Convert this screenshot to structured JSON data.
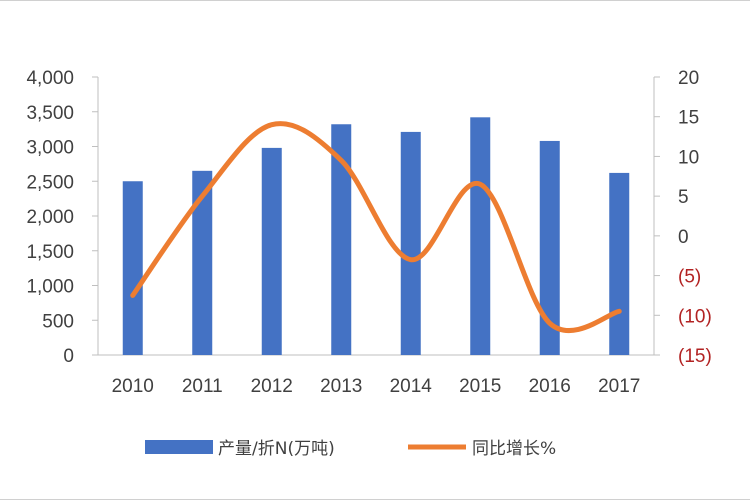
{
  "chart_data": {
    "type": "bar+line",
    "title": "",
    "categories": [
      "2010",
      "2011",
      "2012",
      "2013",
      "2014",
      "2015",
      "2016",
      "2017"
    ],
    "series": [
      {
        "name": "产量/折N(万吨)",
        "type": "bar",
        "axis": "left",
        "color": "#4472C4",
        "values": [
          2500,
          2650,
          2980,
          3320,
          3210,
          3420,
          3080,
          2620
        ]
      },
      {
        "name": "同比增长%",
        "type": "line",
        "axis": "right",
        "color": "#ED7D31",
        "values": [
          -7.5,
          5,
          14,
          9.5,
          -3,
          6.5,
          -11,
          -9.5
        ]
      }
    ],
    "left_axis": {
      "range": [
        0,
        4000
      ],
      "tick_labels": [
        "0",
        "500",
        "1,000",
        "1,500",
        "2,000",
        "2,500",
        "3,000",
        "3,500",
        "4,000"
      ]
    },
    "right_axis": {
      "range": [
        -15,
        20
      ],
      "tick_labels": [
        "(15)",
        "(10)",
        "(5)",
        "0",
        "5",
        "10",
        "15",
        "20"
      ],
      "negative_label_color": "#b22222"
    },
    "legend_position": "bottom",
    "grid": false
  }
}
